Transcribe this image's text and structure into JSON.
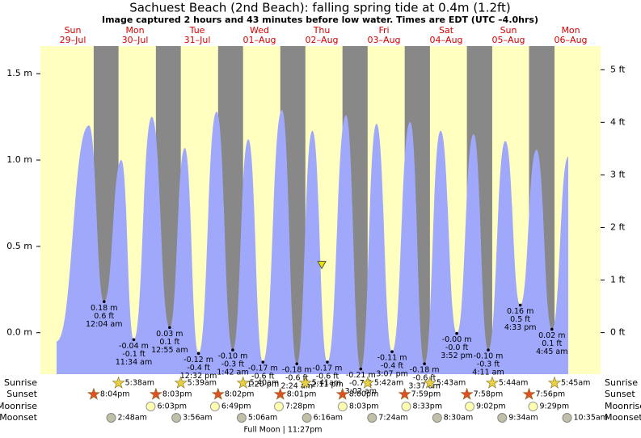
{
  "chart_data": {
    "type": "area",
    "title": "Sachuest Beach (2nd Beach): falling  spring tide at 0.4m (1.2ft)",
    "subtitle": "Image captured 2 hours and 43 minutes before low water. Times are EDT (UTC –4.0hrs)",
    "days": [
      {
        "name": "Sun",
        "date": "29–Jul"
      },
      {
        "name": "Mon",
        "date": "30–Jul"
      },
      {
        "name": "Tue",
        "date": "31–Jul"
      },
      {
        "name": "Wed",
        "date": "01–Aug"
      },
      {
        "name": "Thu",
        "date": "02–Aug"
      },
      {
        "name": "Fri",
        "date": "03–Aug"
      },
      {
        "name": "Sat",
        "date": "04–Aug"
      },
      {
        "name": "Sun",
        "date": "05–Aug"
      },
      {
        "name": "Mon",
        "date": "06–Aug"
      }
    ],
    "xlim": [
      -0.02,
      8.98
    ],
    "ylim": [
      -0.24,
      1.66
    ],
    "yticks": [
      {
        "value": 0,
        "label": "0.0 m"
      },
      {
        "value": 0.5,
        "label": "0.5 m"
      },
      {
        "value": 1,
        "label": "1.0 m"
      },
      {
        "value": 1.5,
        "label": "1.5 m"
      }
    ],
    "y2lim": [
      -0.79,
      5.45
    ],
    "y2ticks": [
      {
        "value": 0,
        "label": "0 ft"
      },
      {
        "value": 1,
        "label": "1 ft"
      },
      {
        "value": 2,
        "label": "2 ft"
      },
      {
        "value": 3,
        "label": "3 ft"
      },
      {
        "value": 4,
        "label": "4 ft"
      },
      {
        "value": 5,
        "label": "5 ft"
      }
    ],
    "series": [
      {
        "color": "#a0a8fc",
        "x": [
          0.24,
          0.76,
          1.003,
          1.28,
          1.48,
          1.77,
          2.056,
          2.3,
          2.52,
          2.81,
          3.07,
          3.32,
          3.555,
          3.86,
          4.1,
          4.35,
          4.59,
          4.89,
          5.127,
          5.38,
          5.63,
          5.92,
          6.15,
          6.41,
          6.67,
          6.94,
          7.175,
          7.45,
          7.69,
          7.95,
          8.198,
          8.46
        ],
        "values": [
          -0.05,
          1.2,
          0.18,
          1.0,
          -0.04,
          1.25,
          0.03,
          1.07,
          -0.12,
          1.28,
          -0.1,
          1.12,
          -0.17,
          1.29,
          -0.18,
          1.17,
          -0.17,
          1.26,
          -0.21,
          1.21,
          -0.11,
          1.22,
          -0.18,
          1.17,
          -0.004,
          1.15,
          -0.1,
          1.11,
          0.16,
          1.06,
          0.02,
          1.02
        ]
      }
    ],
    "lows": {
      "x": [
        1.003,
        1.48,
        2.056,
        2.52,
        3.07,
        3.555,
        4.1,
        4.59,
        5.127,
        5.63,
        6.15,
        6.67,
        7.175,
        7.69,
        8.198
      ],
      "values": [
        0.18,
        -0.04,
        0.03,
        -0.12,
        -0.1,
        -0.17,
        -0.18,
        -0.17,
        -0.21,
        -0.11,
        -0.18,
        -0.004,
        -0.1,
        0.16,
        0.02
      ],
      "value_labels": [
        "0.18 m",
        "-0.04 m",
        "0.03 m",
        "-0.12 m",
        "-0.10 m",
        "-0.17 m",
        "-0.18 m",
        "-0.17 m",
        "-0.21 m",
        "-0.11 m",
        "-0.18 m",
        "-0.00 m",
        "-0.10 m",
        "0.16 m",
        "0.02 m"
      ],
      "ft_labels": [
        "0.6 ft",
        "-0.1 ft",
        "0.1 ft",
        "-0.4 ft",
        "-0.3 ft",
        "-0.6 ft",
        "-0.6 ft",
        "-0.6 ft",
        "-0.7 ft",
        "-0.4 ft",
        "-0.6 ft",
        "-0.0 ft",
        "-0.3 ft",
        "0.5 ft",
        "0.1 ft"
      ],
      "times": [
        "12:04 am",
        "11:34 am",
        "12:55 am",
        "12:32 pm",
        "1:42 am",
        "1:20 pm",
        "2:24 am",
        "2:11 pm",
        "3:02 am",
        "3:07 pm",
        "3:37 am",
        "3:52 pm",
        "4:11 am",
        "4:33 pm",
        "4:45 am"
      ]
    },
    "now_marker": {
      "x": 4.5,
      "value": 0.39
    },
    "night_color": "#888888",
    "day_color": "#ffffc0",
    "rows": [
      {
        "name": "Sunrise",
        "times": [
          null,
          "5:38am",
          "5:39am",
          "5:40am",
          "5:41am",
          "5:42am",
          "5:43am",
          "5:44am",
          "5:45am"
        ]
      },
      {
        "name": "Sunset",
        "times": [
          "8:04pm",
          "8:03pm",
          "8:02pm",
          "8:01pm",
          "8:00pm",
          "7:59pm",
          "7:58pm",
          "7:56pm",
          null
        ]
      },
      {
        "name": "Moonrise",
        "times": [
          null,
          "6:03pm",
          "6:49pm",
          "7:28pm",
          "8:03pm",
          "8:33pm",
          "9:02pm",
          "9:29pm",
          null
        ]
      },
      {
        "name": "Moonset",
        "times": [
          null,
          "2:48am",
          "3:56am",
          "5:06am",
          "6:16am",
          "7:24am",
          "8:30am",
          "9:34am",
          "10:35am"
        ]
      }
    ],
    "moon_phase": "Full Moon | 11:27pm"
  }
}
